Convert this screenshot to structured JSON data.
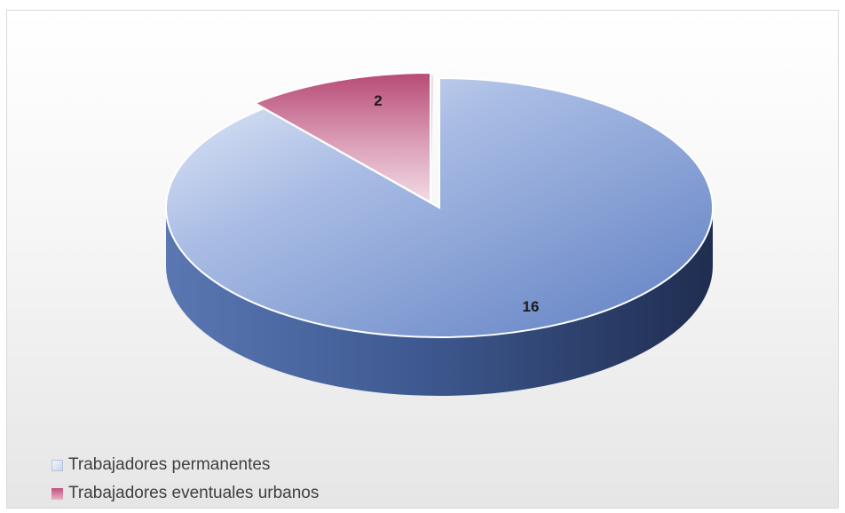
{
  "chart_data": {
    "type": "pie",
    "style": "3d-exploded",
    "title": "",
    "slices": [
      {
        "label": "Trabajadores permanentes",
        "value": 16,
        "color": "#7b96cf"
      },
      {
        "label": "Trabajadores eventuales urbanos",
        "value": 2,
        "color": "#c9567e"
      }
    ],
    "legend_placement": "bottom-left",
    "data_labels": [
      "16",
      "2"
    ]
  }
}
